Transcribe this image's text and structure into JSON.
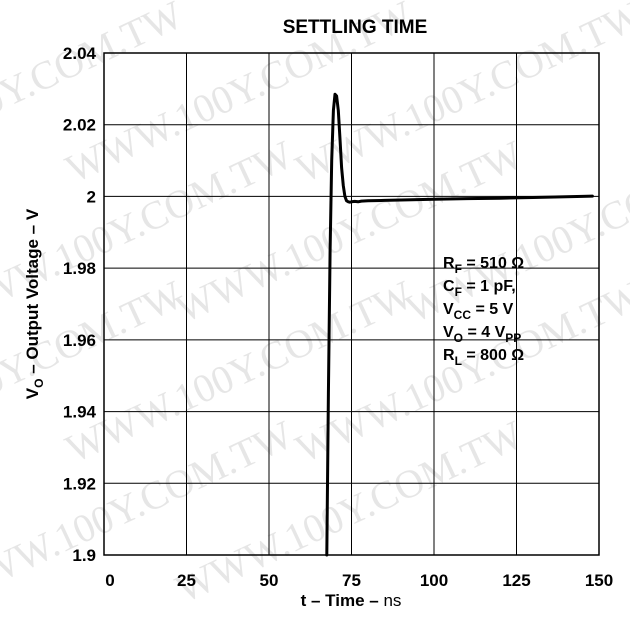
{
  "chart_data": {
    "type": "line",
    "title": "SETTLING TIME",
    "xlabel_main": "t – Time – ",
    "xlabel_unit": "ns",
    "ylabel_sym": "V",
    "ylabel_sub": "O",
    "ylabel_rest": " – Output Voltage – V",
    "xlim": [
      0,
      150
    ],
    "ylim": [
      1.9,
      2.04
    ],
    "x_ticks": [
      0,
      25,
      50,
      75,
      100,
      125,
      150
    ],
    "x_tick_labels": [
      "0",
      "25",
      "50",
      "75",
      "100",
      "125",
      "150"
    ],
    "y_ticks": [
      1.9,
      1.92,
      1.94,
      1.96,
      1.98,
      2.0,
      2.02,
      2.04
    ],
    "y_tick_labels": [
      "1.9",
      "1.92",
      "1.94",
      "1.96",
      "1.98",
      "2",
      "2.02",
      "2.04"
    ],
    "grid": true,
    "series": [
      {
        "color": "#000000",
        "x": [
          67.5,
          68.0,
          68.5,
          69.0,
          69.5,
          70.0,
          70.5,
          71.0,
          71.5,
          72.0,
          72.5,
          73.0,
          73.5,
          74.0,
          74.5,
          75.0,
          76.0,
          77.0,
          78.0,
          80.0,
          85.0,
          90.0,
          100.0,
          110.0,
          120.0,
          130.0,
          140.0,
          145.0,
          148.0
        ],
        "y": [
          1.9,
          1.945,
          1.985,
          2.01,
          2.024,
          2.0285,
          2.028,
          2.024,
          2.016,
          2.008,
          2.003,
          2.0,
          1.9988,
          1.9985,
          1.9984,
          1.9985,
          1.9986,
          1.9985,
          1.9987,
          1.9988,
          1.9989,
          1.999,
          1.9992,
          1.9994,
          1.9995,
          1.9997,
          1.9999,
          2.0,
          2.0001
        ]
      }
    ],
    "annotations": [
      {
        "main": "R",
        "sub": "F",
        "rest": " = 510 Ω"
      },
      {
        "main": "C",
        "sub": "F",
        "rest": " = 1 pF,"
      },
      {
        "main": "V",
        "sub": "CC",
        "rest": " = 5 V"
      },
      {
        "main": "V",
        "sub": "O",
        "rest": " = 4 V",
        "sub2": "PP"
      },
      {
        "main": "R",
        "sub": "L",
        "rest": " = 800 Ω"
      }
    ]
  },
  "watermark": "WWW.100Y.COM.TW"
}
